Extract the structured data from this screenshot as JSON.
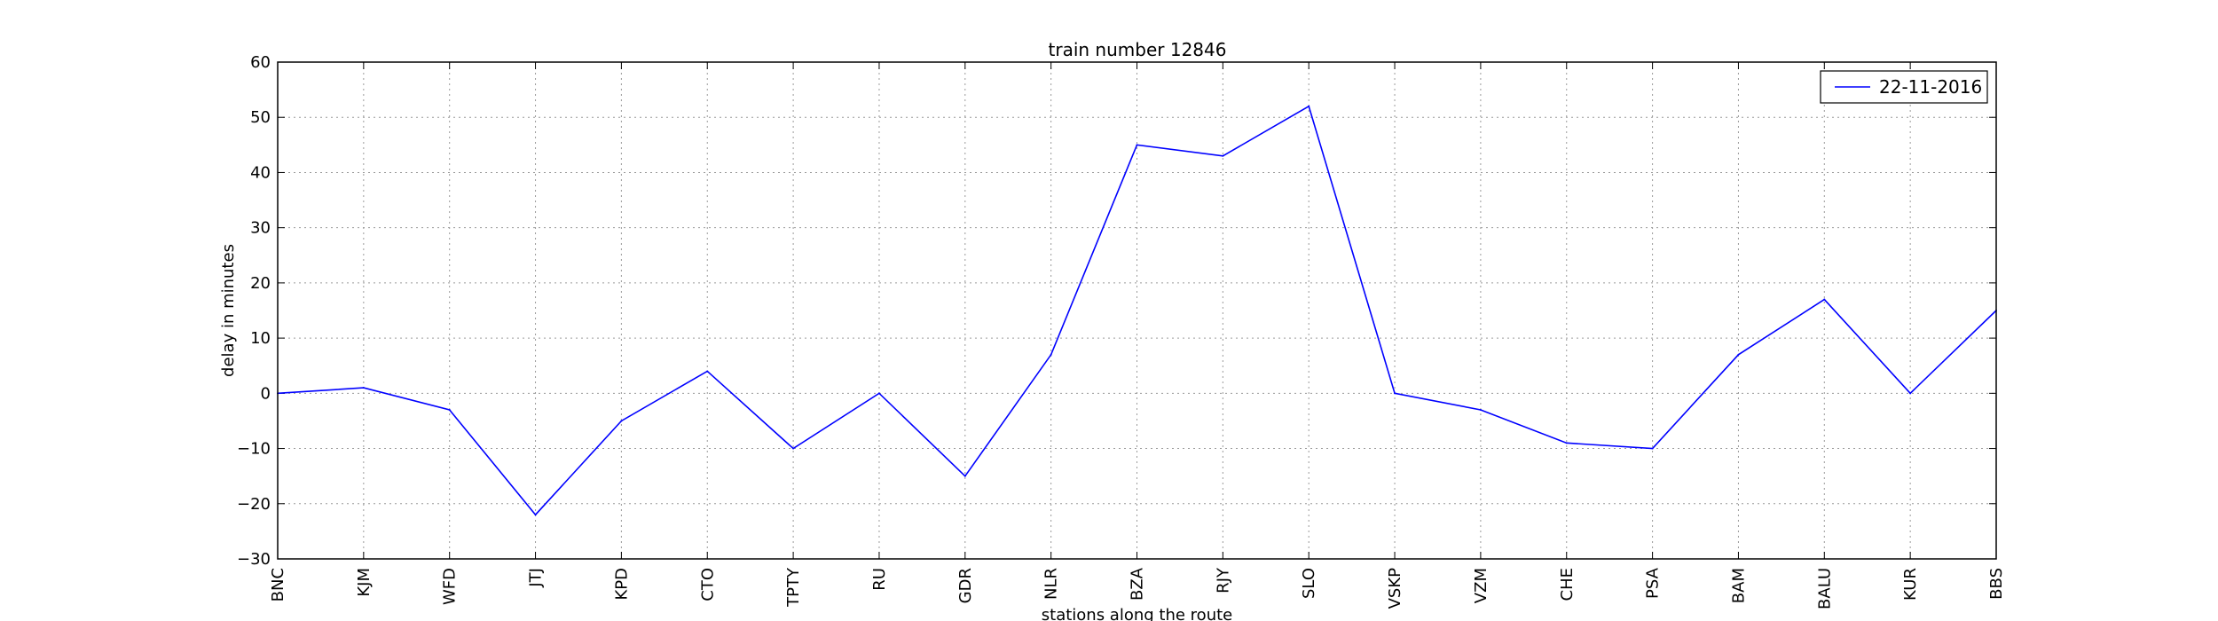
{
  "chart_data": {
    "type": "line",
    "title": "train number 12846",
    "xlabel": "stations along the route",
    "ylabel": "delay in minutes",
    "ylim": [
      -30,
      60
    ],
    "yticks": [
      -30,
      -20,
      -10,
      0,
      10,
      20,
      30,
      40,
      50,
      60
    ],
    "grid": true,
    "legend_position": "top-right",
    "categories": [
      "BNC",
      "KJM",
      "WFD",
      "JTJ",
      "KPD",
      "CTO",
      "TPTY",
      "RU",
      "GDR",
      "NLR",
      "BZA",
      "RJY",
      "SLO",
      "VSKP",
      "VZM",
      "CHE",
      "PSA",
      "BAM",
      "BALU",
      "KUR",
      "BBS"
    ],
    "series": [
      {
        "name": "22-11-2016",
        "color": "#0000ff",
        "values": [
          0,
          1,
          -3,
          -22,
          -5,
          4,
          -10,
          0,
          -15,
          7,
          45,
          43,
          52,
          0,
          -3,
          -9,
          -10,
          7,
          17,
          0,
          15
        ]
      }
    ]
  }
}
